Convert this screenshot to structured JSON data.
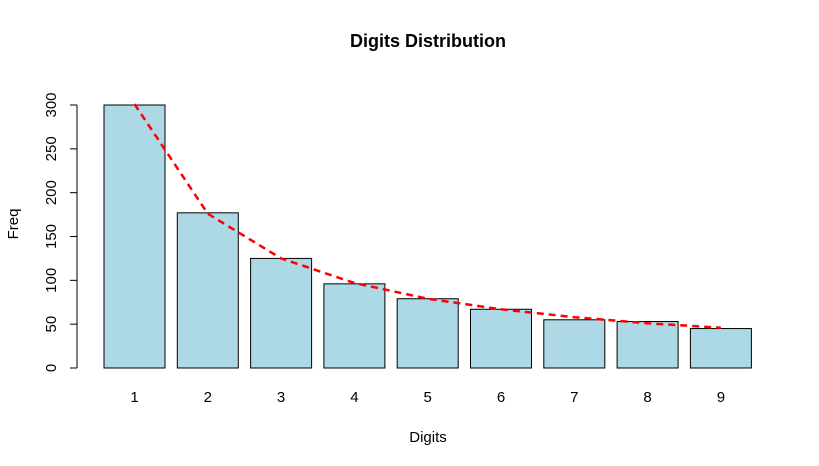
{
  "chart_data": {
    "type": "bar",
    "title": "Digits Distribution",
    "xlabel": "Digits",
    "ylabel": "Freq",
    "categories": [
      "1",
      "2",
      "3",
      "4",
      "5",
      "6",
      "7",
      "8",
      "9"
    ],
    "values": [
      300,
      177,
      125,
      96,
      79,
      67,
      55,
      53,
      45
    ],
    "ylim": [
      0,
      300
    ],
    "yticks": [
      "0",
      "50",
      "100",
      "150",
      "200",
      "250",
      "300"
    ],
    "grid": false,
    "bar_color": "#ADD8E6",
    "bar_border": "#000000",
    "expected_curve": {
      "values": [
        301,
        176,
        125,
        97,
        79,
        67,
        58,
        51,
        46
      ],
      "color": "#FF0000",
      "style": "dashed"
    }
  }
}
